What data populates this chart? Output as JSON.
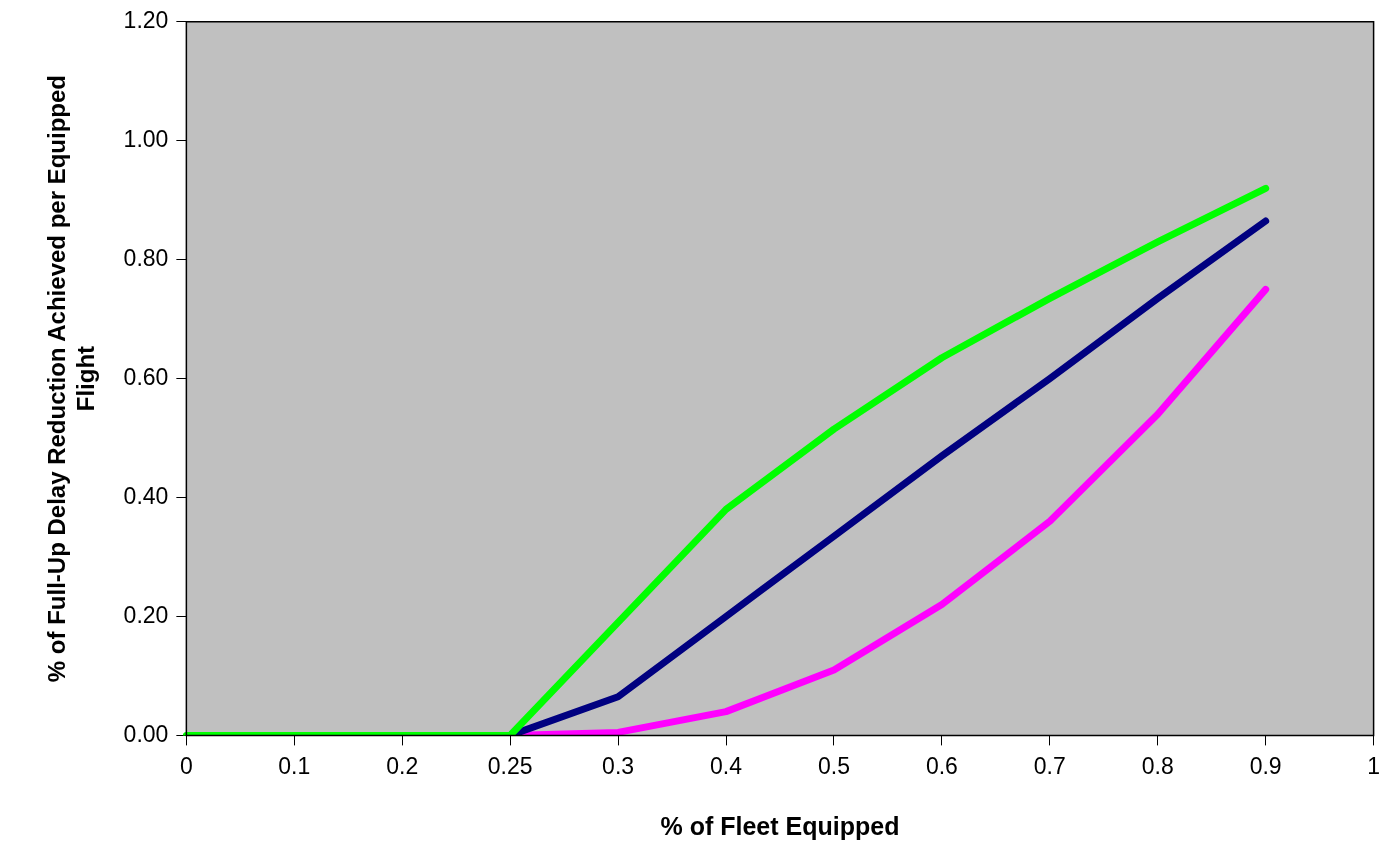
{
  "chart_data": {
    "type": "line",
    "xlabel": "% of Fleet Equipped",
    "ylabel": "% of Full-Up Delay Reduction Achieved per Equipped Flight",
    "categories": [
      "0",
      "0.1",
      "0.2",
      "0.25",
      "0.3",
      "0.4",
      "0.5",
      "0.6",
      "0.7",
      "0.8",
      "0.9",
      "1"
    ],
    "series": [
      {
        "color": "#00ff00",
        "values": [
          0,
          0,
          0,
          0,
          0.19,
          0.38,
          0.515,
          0.635,
          0.735,
          0.83,
          0.92,
          null
        ]
      },
      {
        "color": "#000080",
        "values": [
          null,
          null,
          null,
          0,
          0.065,
          0.2,
          0.335,
          0.47,
          0.6,
          0.735,
          0.865,
          null
        ]
      },
      {
        "color": "#ff00ff",
        "values": [
          null,
          null,
          null,
          0,
          0.005,
          0.04,
          0.11,
          0.22,
          0.36,
          0.54,
          0.75,
          null
        ]
      }
    ],
    "ylim": [
      0,
      1.2
    ],
    "yticks": [
      {
        "value": 0,
        "label": "0.00"
      },
      {
        "value": 0.2,
        "label": "0.20"
      },
      {
        "value": 0.4,
        "label": "0.40"
      },
      {
        "value": 0.6,
        "label": "0.60"
      },
      {
        "value": 0.8,
        "label": "0.80"
      },
      {
        "value": 1,
        "label": "1.00"
      },
      {
        "value": 1.2,
        "label": "1.20"
      }
    ],
    "grid": false,
    "legend": false,
    "marker": "none",
    "line_style": "solid"
  }
}
